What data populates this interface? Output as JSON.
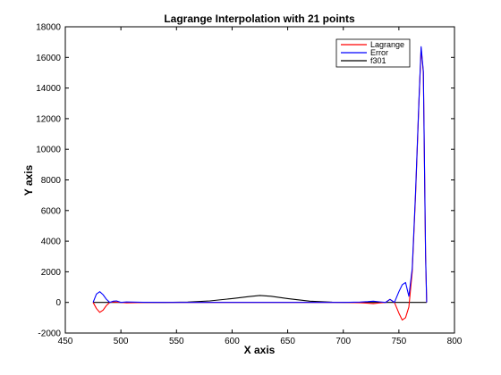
{
  "chart_data": {
    "type": "line",
    "title": "Lagrange Interpolation with 21 points",
    "xlabel": "X axis",
    "ylabel": "Y axis",
    "xlim": [
      450,
      800
    ],
    "ylim": [
      -2000,
      18000
    ],
    "xticks": [
      450,
      500,
      550,
      600,
      650,
      700,
      750,
      800
    ],
    "yticks": [
      -2000,
      0,
      2000,
      4000,
      6000,
      8000,
      10000,
      12000,
      14000,
      16000,
      18000
    ],
    "grid": false,
    "legend_position": "top-right",
    "series": [
      {
        "name": "Lagrange",
        "color": "#ff0000",
        "x": [
          475,
          478,
          481,
          484,
          487,
          490,
          493,
          496,
          500,
          505,
          520,
          540,
          560,
          580,
          600,
          620,
          640,
          660,
          680,
          700,
          715,
          722,
          727,
          732,
          738,
          742,
          746,
          750,
          753,
          756,
          759,
          762,
          765,
          768,
          770,
          772,
          774,
          775
        ],
        "y": [
          0,
          -400,
          -650,
          -500,
          -200,
          0,
          30,
          20,
          0,
          -30,
          -10,
          0,
          0,
          0,
          0,
          0,
          0,
          0,
          0,
          0,
          -20,
          -50,
          -80,
          -40,
          0,
          200,
          0,
          -700,
          -1150,
          -1000,
          -300,
          2000,
          7000,
          13000,
          16600,
          15000,
          3000,
          0
        ]
      },
      {
        "name": "Error",
        "color": "#0000ff",
        "x": [
          475,
          478,
          481,
          484,
          487,
          490,
          493,
          496,
          500,
          505,
          520,
          540,
          560,
          580,
          600,
          620,
          640,
          660,
          680,
          700,
          715,
          722,
          727,
          732,
          738,
          742,
          746,
          750,
          753,
          756,
          759,
          762,
          765,
          768,
          770,
          772,
          774,
          775
        ],
        "y": [
          0,
          550,
          700,
          500,
          200,
          0,
          80,
          100,
          0,
          30,
          10,
          0,
          0,
          0,
          0,
          0,
          0,
          0,
          0,
          0,
          20,
          50,
          80,
          40,
          0,
          200,
          0,
          700,
          1150,
          1300,
          400,
          2200,
          7200,
          13100,
          16700,
          15100,
          3100,
          0
        ]
      },
      {
        "name": "f301",
        "color": "#000000",
        "x": [
          475,
          540,
          560,
          580,
          600,
          615,
          625,
          635,
          650,
          670,
          690,
          710,
          740,
          775
        ],
        "y": [
          0,
          0,
          20,
          100,
          250,
          380,
          450,
          400,
          250,
          80,
          15,
          0,
          0,
          0
        ]
      }
    ]
  }
}
